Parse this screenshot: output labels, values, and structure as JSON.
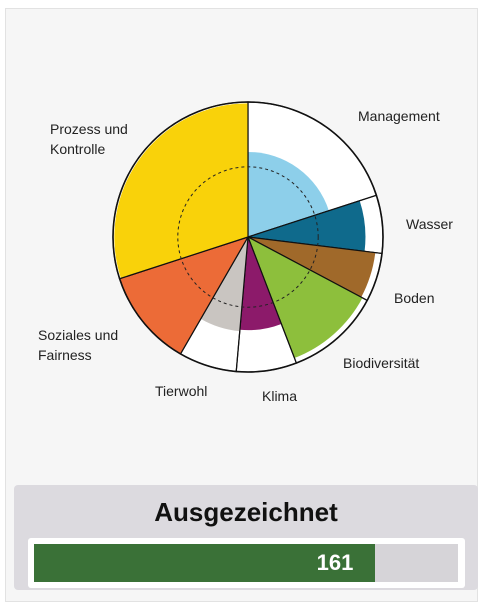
{
  "chart_data": {
    "type": "polar",
    "categories": [
      "Management",
      "Wasser",
      "Boden",
      "Biodiversität",
      "Klima",
      "Tierwohl",
      "Soziales und\nFairness",
      "Prozess und\nKontrolle"
    ],
    "spans": [
      72,
      25,
      21,
      41,
      26,
      25,
      42,
      108
    ],
    "values": [
      63,
      87,
      95,
      96,
      69,
      70,
      100,
      99
    ],
    "colors": [
      "#8dcfea",
      "#0f6a8c",
      "#a0692a",
      "#8dbf3c",
      "#8c1a6a",
      "#c9c5c1",
      "#ec6b37",
      "#f9d20a"
    ],
    "reference_ring": 52
  },
  "rating": {
    "label": "Ausgezeichnet",
    "score": 161,
    "max": 200
  }
}
